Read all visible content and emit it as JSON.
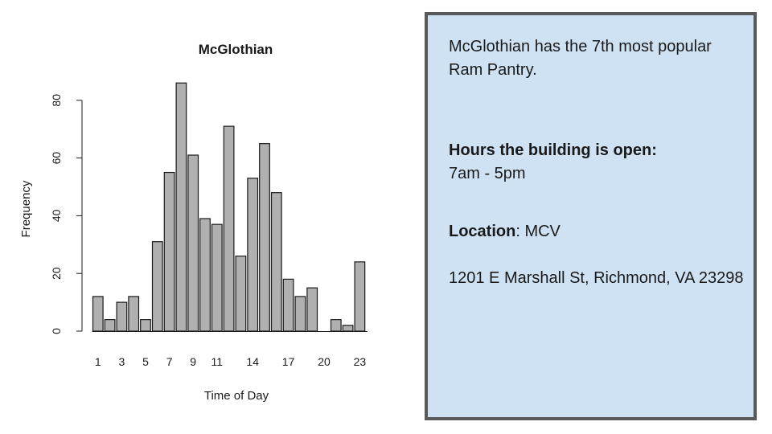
{
  "chart_data": {
    "type": "bar",
    "title": "McGlothian",
    "xlabel": "Time of Day",
    "ylabel": "Frequency",
    "categories": [
      1,
      2,
      3,
      4,
      5,
      6,
      7,
      8,
      9,
      10,
      11,
      12,
      13,
      14,
      15,
      16,
      17,
      18,
      19,
      20,
      21,
      22,
      23
    ],
    "values": [
      12,
      4,
      10,
      12,
      4,
      31,
      55,
      86,
      61,
      39,
      37,
      71,
      26,
      53,
      65,
      48,
      18,
      12,
      15,
      0,
      4,
      2,
      24
    ],
    "xtick_labels": [
      "1",
      "3",
      "5",
      "7",
      "9",
      "11",
      "14",
      "17",
      "20",
      "23"
    ],
    "ytick_labels": [
      "0",
      "20",
      "40",
      "60",
      "80"
    ],
    "yticks": [
      0,
      20,
      40,
      60,
      80
    ],
    "ylim": [
      0,
      90
    ],
    "bar_color": "#b0b0b0",
    "bar_border": "#1a1a1a",
    "grid": false,
    "legend": false
  },
  "info": {
    "intro": "McGlothian has the 7th most popular Ram Pantry.",
    "hours_label": "Hours the building is open:",
    "hours_value": "7am - 5pm",
    "location_label": "Location",
    "location_value": ": MCV",
    "address": "1201 E Marshall St, Richmond, VA 23298"
  },
  "colors": {
    "box_fill": "#cfe2f3",
    "box_border": "#595959"
  }
}
